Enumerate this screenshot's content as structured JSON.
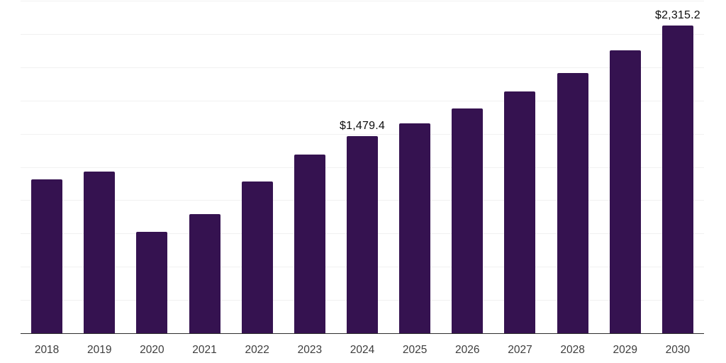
{
  "chart_data": {
    "type": "bar",
    "categories": [
      "2018",
      "2019",
      "2020",
      "2021",
      "2022",
      "2023",
      "2024",
      "2025",
      "2026",
      "2027",
      "2028",
      "2029",
      "2030"
    ],
    "values": [
      1156.0,
      1218.0,
      760.0,
      893.5,
      1140.0,
      1346.0,
      1479.4,
      1575.5,
      1690.0,
      1816.0,
      1956.0,
      2125.5,
      2315.2
    ],
    "bar_labels": [
      "",
      "",
      "",
      "",
      "",
      "",
      "$1,479.4",
      "",
      "",
      "",
      "",
      "",
      "$2,315.2"
    ],
    "title": "",
    "xlabel": "",
    "ylabel": "",
    "ylim": [
      0,
      2500
    ],
    "gridline_step": 250,
    "grid": "horizontal-only",
    "y_tick_labels_shown": false,
    "legend_position": "none",
    "colors": {
      "bar": "#351250",
      "axis_line": "#2e2e2e",
      "gridline": "#f1f1f1",
      "value_label": "#0d0d0d",
      "tick_label": "#3d3d3d",
      "background": "#ffffff"
    }
  }
}
